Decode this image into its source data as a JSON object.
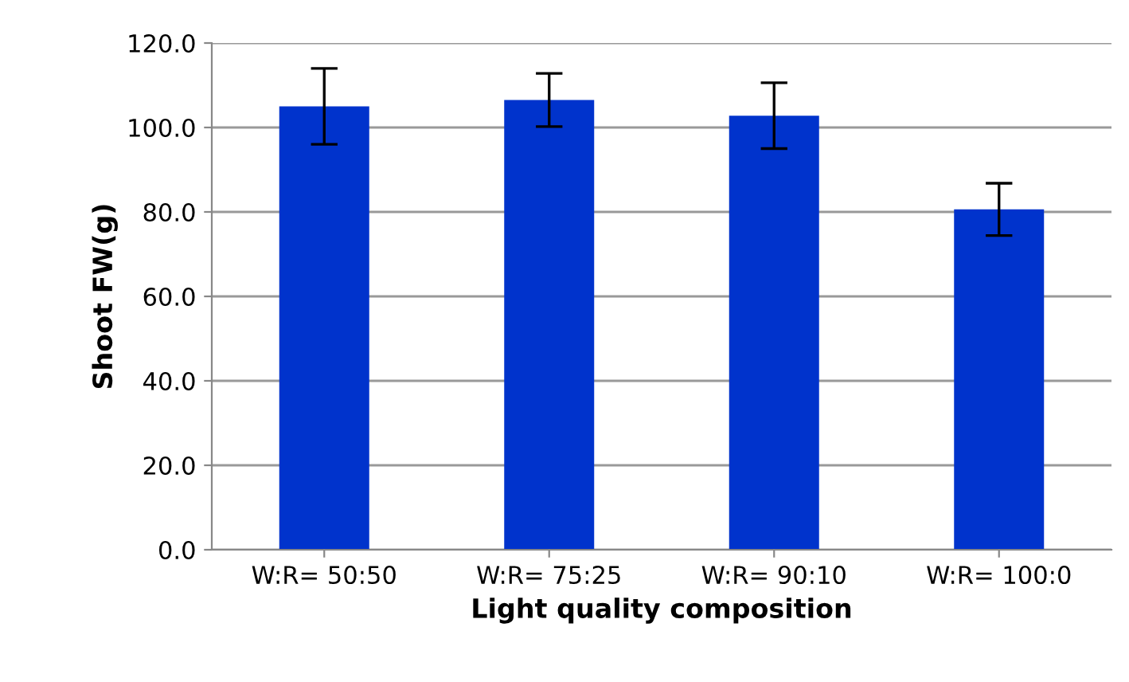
{
  "chart_data": {
    "type": "bar",
    "xlabel": "Light quality composition",
    "ylabel": "Shoot FW(g)",
    "categories": [
      "W:R= 50:50",
      "W:R= 75:25",
      "W:R= 90:10",
      "W:R= 100:0"
    ],
    "values": [
      105.0,
      106.5,
      102.8,
      80.6
    ],
    "errors": [
      9.0,
      6.3,
      7.8,
      6.2
    ],
    "color": "#0033cc",
    "ylim": [
      0,
      120
    ],
    "yticks": [
      {
        "value": 0,
        "label": "0.0"
      },
      {
        "value": 20,
        "label": "20.0"
      },
      {
        "value": 40,
        "label": "40.0"
      },
      {
        "value": 60,
        "label": "60.0"
      },
      {
        "value": 80,
        "label": "80.0"
      },
      {
        "value": 100,
        "label": "100.0"
      },
      {
        "value": 120,
        "label": "120.0"
      }
    ],
    "grid": "y"
  }
}
